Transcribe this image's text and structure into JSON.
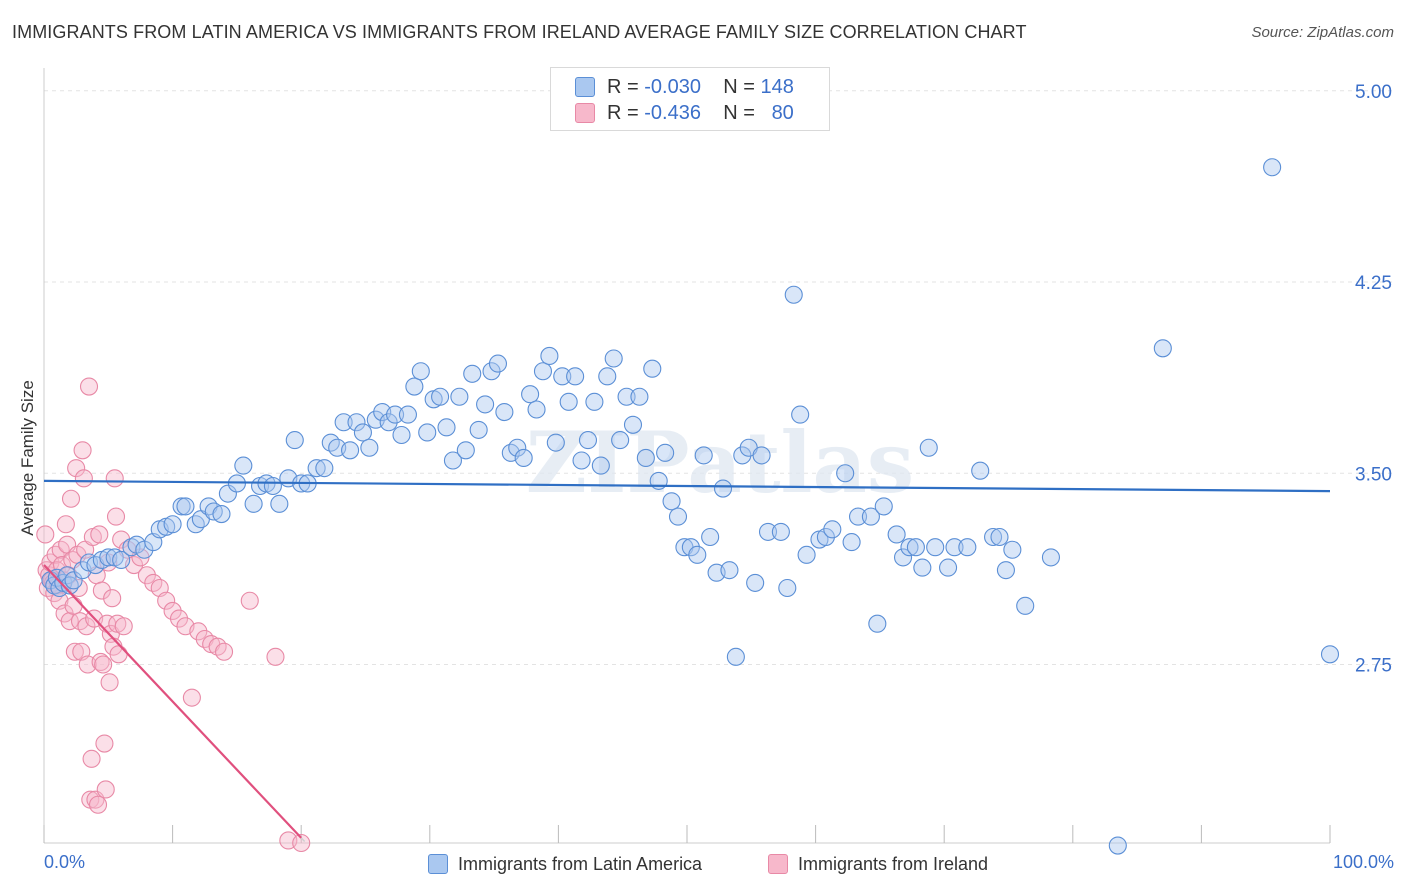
{
  "title": "IMMIGRANTS FROM LATIN AMERICA VS IMMIGRANTS FROM IRELAND AVERAGE FAMILY SIZE CORRELATION CHART",
  "source": "Source: ZipAtlas.com",
  "watermark": "ZIPatlas",
  "legend": {
    "rows": [
      {
        "r_label": "R =",
        "r_value": "-0.030",
        "n_label": "N =",
        "n_value": "148"
      },
      {
        "r_label": "R =",
        "r_value": "-0.436",
        "n_label": "N =",
        "n_value": "80"
      }
    ]
  },
  "bottom_legend": [
    "Immigrants from Latin America",
    "Immigrants from Ireland"
  ],
  "colors": {
    "blue_fill": "#aac8f0",
    "blue_stroke": "#5b8fd6",
    "blue_line": "#2f6fc4",
    "pink_fill": "#f7b8cb",
    "pink_stroke": "#e889a6",
    "pink_line": "#e0507e",
    "tick_text": "#3b6fc9",
    "grid": "#e3e3e3"
  },
  "chart_data": {
    "type": "scatter",
    "title": "IMMIGRANTS FROM LATIN AMERICA VS IMMIGRANTS FROM IRELAND AVERAGE FAMILY SIZE CORRELATION CHART",
    "xlabel": "",
    "ylabel": "Average Family Size",
    "x_tick_labels": [
      "0.0%",
      "100.0%"
    ],
    "y_ticks": [
      2.75,
      3.5,
      4.25,
      5.0
    ],
    "y_tick_labels": [
      "2.75",
      "3.50",
      "4.25",
      "5.00"
    ],
    "xlim": [
      0,
      100
    ],
    "ylim": [
      2.05,
      5.05
    ],
    "grid": true,
    "legend_position": "top-center",
    "series": [
      {
        "name": "Immigrants from Latin America",
        "color": "blue",
        "R": -0.03,
        "N": 148,
        "trend": {
          "x": [
            0,
            100
          ],
          "y": [
            3.47,
            3.43
          ]
        },
        "points": [
          [
            0.5,
            3.08
          ],
          [
            0.8,
            3.06
          ],
          [
            1.0,
            3.09
          ],
          [
            1.2,
            3.05
          ],
          [
            1.5,
            3.07
          ],
          [
            1.8,
            3.1
          ],
          [
            2.0,
            3.06
          ],
          [
            2.3,
            3.08
          ],
          [
            3.0,
            3.12
          ],
          [
            3.5,
            3.15
          ],
          [
            4.0,
            3.14
          ],
          [
            4.5,
            3.16
          ],
          [
            5.0,
            3.17
          ],
          [
            5.5,
            3.17
          ],
          [
            6.0,
            3.16
          ],
          [
            6.8,
            3.21
          ],
          [
            7.2,
            3.22
          ],
          [
            7.8,
            3.2
          ],
          [
            8.5,
            3.23
          ],
          [
            9.0,
            3.28
          ],
          [
            9.5,
            3.29
          ],
          [
            10.0,
            3.3
          ],
          [
            10.7,
            3.37
          ],
          [
            11.0,
            3.37
          ],
          [
            11.8,
            3.3
          ],
          [
            12.2,
            3.32
          ],
          [
            12.8,
            3.37
          ],
          [
            13.2,
            3.35
          ],
          [
            13.8,
            3.34
          ],
          [
            14.3,
            3.42
          ],
          [
            15.0,
            3.46
          ],
          [
            15.5,
            3.53
          ],
          [
            16.3,
            3.38
          ],
          [
            16.8,
            3.45
          ],
          [
            17.3,
            3.46
          ],
          [
            17.8,
            3.45
          ],
          [
            18.3,
            3.38
          ],
          [
            19.0,
            3.48
          ],
          [
            19.5,
            3.63
          ],
          [
            20.0,
            3.46
          ],
          [
            20.5,
            3.46
          ],
          [
            21.2,
            3.52
          ],
          [
            21.8,
            3.52
          ],
          [
            22.3,
            3.62
          ],
          [
            22.8,
            3.6
          ],
          [
            23.3,
            3.7
          ],
          [
            23.8,
            3.59
          ],
          [
            24.3,
            3.7
          ],
          [
            24.8,
            3.66
          ],
          [
            25.3,
            3.6
          ],
          [
            25.8,
            3.71
          ],
          [
            26.3,
            3.74
          ],
          [
            26.8,
            3.7
          ],
          [
            27.3,
            3.73
          ],
          [
            27.8,
            3.65
          ],
          [
            28.3,
            3.73
          ],
          [
            28.8,
            3.84
          ],
          [
            29.3,
            3.9
          ],
          [
            29.8,
            3.66
          ],
          [
            30.3,
            3.79
          ],
          [
            30.8,
            3.8
          ],
          [
            31.3,
            3.68
          ],
          [
            31.8,
            3.55
          ],
          [
            32.3,
            3.8
          ],
          [
            32.8,
            3.59
          ],
          [
            33.3,
            3.89
          ],
          [
            33.8,
            3.67
          ],
          [
            34.3,
            3.77
          ],
          [
            34.8,
            3.9
          ],
          [
            35.3,
            3.93
          ],
          [
            35.8,
            3.74
          ],
          [
            36.3,
            3.58
          ],
          [
            36.8,
            3.6
          ],
          [
            37.3,
            3.56
          ],
          [
            37.8,
            3.81
          ],
          [
            38.3,
            3.75
          ],
          [
            38.8,
            3.9
          ],
          [
            39.3,
            3.96
          ],
          [
            39.8,
            3.62
          ],
          [
            40.3,
            3.88
          ],
          [
            40.8,
            3.78
          ],
          [
            41.3,
            3.88
          ],
          [
            41.8,
            3.55
          ],
          [
            42.3,
            3.63
          ],
          [
            42.8,
            3.78
          ],
          [
            43.3,
            3.53
          ],
          [
            43.8,
            3.88
          ],
          [
            44.3,
            3.95
          ],
          [
            44.8,
            3.63
          ],
          [
            45.3,
            3.8
          ],
          [
            45.8,
            3.69
          ],
          [
            46.3,
            3.8
          ],
          [
            46.8,
            3.56
          ],
          [
            47.3,
            3.91
          ],
          [
            47.8,
            3.47
          ],
          [
            48.3,
            3.58
          ],
          [
            48.8,
            3.39
          ],
          [
            49.3,
            3.33
          ],
          [
            49.8,
            3.21
          ],
          [
            50.3,
            3.21
          ],
          [
            50.8,
            3.18
          ],
          [
            51.3,
            3.57
          ],
          [
            51.8,
            3.25
          ],
          [
            52.3,
            3.11
          ],
          [
            52.8,
            3.44
          ],
          [
            53.3,
            3.12
          ],
          [
            53.8,
            2.78
          ],
          [
            54.3,
            3.57
          ],
          [
            54.8,
            3.6
          ],
          [
            55.3,
            3.07
          ],
          [
            55.8,
            3.57
          ],
          [
            56.3,
            3.27
          ],
          [
            57.3,
            3.27
          ],
          [
            57.8,
            3.05
          ],
          [
            58.3,
            4.2
          ],
          [
            58.8,
            3.73
          ],
          [
            59.3,
            3.18
          ],
          [
            60.3,
            3.24
          ],
          [
            60.8,
            3.25
          ],
          [
            61.3,
            3.28
          ],
          [
            62.3,
            3.5
          ],
          [
            62.8,
            3.23
          ],
          [
            63.3,
            3.33
          ],
          [
            64.3,
            3.33
          ],
          [
            64.8,
            2.91
          ],
          [
            65.3,
            3.37
          ],
          [
            66.3,
            3.26
          ],
          [
            66.8,
            3.17
          ],
          [
            67.3,
            3.21
          ],
          [
            67.8,
            3.21
          ],
          [
            68.3,
            3.13
          ],
          [
            68.8,
            3.6
          ],
          [
            69.3,
            3.21
          ],
          [
            70.3,
            3.13
          ],
          [
            70.8,
            3.21
          ],
          [
            71.8,
            3.21
          ],
          [
            72.8,
            3.51
          ],
          [
            73.8,
            3.25
          ],
          [
            74.3,
            3.25
          ],
          [
            74.8,
            3.12
          ],
          [
            75.3,
            3.2
          ],
          [
            76.3,
            2.98
          ],
          [
            78.3,
            3.17
          ],
          [
            83.5,
            2.04
          ],
          [
            87.0,
            3.99
          ],
          [
            95.5,
            4.7
          ],
          [
            100.0,
            2.79
          ]
        ]
      },
      {
        "name": "Immigrants from Ireland",
        "color": "pink",
        "R": -0.436,
        "N": 80,
        "trend": {
          "x": [
            0,
            20
          ],
          "y": [
            3.14,
            2.07
          ]
        },
        "trend_dashed": {
          "x": [
            20,
            35
          ],
          "y": [
            2.07,
            1.27
          ]
        },
        "points": [
          [
            0.1,
            3.26
          ],
          [
            0.2,
            3.12
          ],
          [
            0.3,
            3.05
          ],
          [
            0.4,
            3.1
          ],
          [
            0.5,
            3.15
          ],
          [
            0.6,
            3.08
          ],
          [
            0.7,
            3.07
          ],
          [
            0.8,
            3.03
          ],
          [
            0.9,
            3.18
          ],
          [
            1.0,
            3.12
          ],
          [
            1.1,
            3.06
          ],
          [
            1.2,
            3.0
          ],
          [
            1.3,
            3.2
          ],
          [
            1.4,
            3.14
          ],
          [
            1.5,
            3.08
          ],
          [
            1.6,
            2.95
          ],
          [
            1.7,
            3.3
          ],
          [
            1.8,
            3.22
          ],
          [
            1.9,
            3.1
          ],
          [
            2.0,
            2.92
          ],
          [
            2.1,
            3.4
          ],
          [
            2.2,
            3.16
          ],
          [
            2.3,
            2.98
          ],
          [
            2.4,
            2.8
          ],
          [
            2.5,
            3.52
          ],
          [
            2.6,
            3.18
          ],
          [
            2.7,
            3.05
          ],
          [
            2.8,
            2.92
          ],
          [
            2.9,
            2.8
          ],
          [
            3.0,
            3.59
          ],
          [
            3.1,
            3.48
          ],
          [
            3.2,
            3.2
          ],
          [
            3.3,
            2.9
          ],
          [
            3.4,
            2.75
          ],
          [
            3.5,
            3.84
          ],
          [
            3.6,
            2.22
          ],
          [
            3.7,
            2.38
          ],
          [
            3.8,
            3.25
          ],
          [
            3.9,
            2.93
          ],
          [
            4.0,
            2.22
          ],
          [
            4.1,
            3.1
          ],
          [
            4.2,
            2.2
          ],
          [
            4.3,
            3.26
          ],
          [
            4.4,
            2.76
          ],
          [
            4.5,
            3.04
          ],
          [
            4.6,
            2.75
          ],
          [
            4.7,
            2.44
          ],
          [
            4.8,
            2.26
          ],
          [
            4.9,
            2.91
          ],
          [
            5.0,
            3.15
          ],
          [
            5.1,
            2.68
          ],
          [
            5.2,
            2.87
          ],
          [
            5.3,
            3.01
          ],
          [
            5.4,
            2.82
          ],
          [
            5.5,
            3.48
          ],
          [
            5.6,
            3.33
          ],
          [
            5.7,
            2.91
          ],
          [
            5.8,
            2.79
          ],
          [
            6.0,
            3.24
          ],
          [
            6.2,
            2.9
          ],
          [
            6.5,
            3.2
          ],
          [
            7.0,
            3.14
          ],
          [
            7.5,
            3.17
          ],
          [
            8.0,
            3.1
          ],
          [
            8.5,
            3.07
          ],
          [
            9.0,
            3.05
          ],
          [
            9.5,
            3.0
          ],
          [
            10.0,
            2.96
          ],
          [
            10.5,
            2.93
          ],
          [
            11.0,
            2.9
          ],
          [
            11.5,
            2.62
          ],
          [
            12.0,
            2.88
          ],
          [
            12.5,
            2.85
          ],
          [
            13.0,
            2.83
          ],
          [
            13.5,
            2.82
          ],
          [
            14.0,
            2.8
          ],
          [
            16.0,
            3.0
          ],
          [
            18.0,
            2.78
          ],
          [
            19.0,
            2.06
          ],
          [
            20.0,
            2.05
          ]
        ]
      }
    ]
  }
}
